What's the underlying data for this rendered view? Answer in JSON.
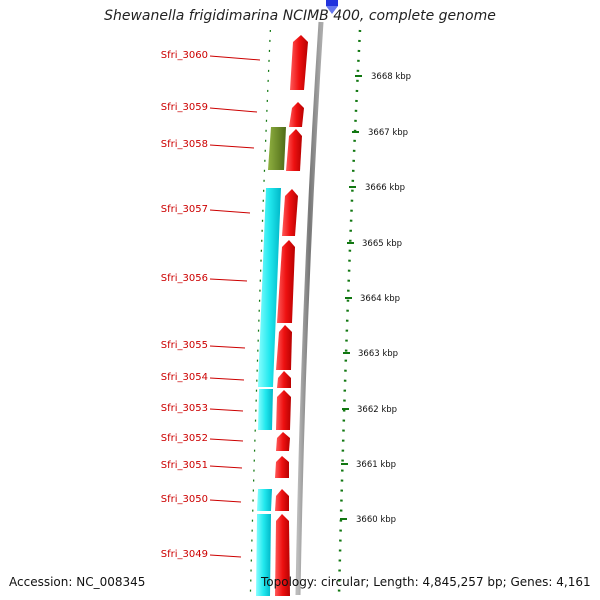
{
  "title": "Shewanella frigidimarina NCIMB 400, complete genome",
  "accession_text": "Accession: NC_008345",
  "topology_text": "Topology: circular; Length: 4,845,257 bp; Genes: 4,161",
  "colors": {
    "cds_forward": "#ee1111",
    "cds_blast_hit": "#22eeee",
    "cds_other": "#6b8e23",
    "gene_label": "#cc0000",
    "backbone": "#888888",
    "highlight": "#2233dd",
    "tick_marks": "#117711"
  },
  "gene_labels": [
    {
      "label": "Sfri_3060"
    },
    {
      "label": "Sfri_3059"
    },
    {
      "label": "Sfri_3058"
    },
    {
      "label": "Sfri_3057"
    },
    {
      "label": "Sfri_3056"
    },
    {
      "label": "Sfri_3055"
    },
    {
      "label": "Sfri_3054"
    },
    {
      "label": "Sfri_3053"
    },
    {
      "label": "Sfri_3052"
    },
    {
      "label": "Sfri_3051"
    },
    {
      "label": "Sfri_3050"
    },
    {
      "label": "Sfri_3049"
    }
  ],
  "scale_labels": [
    {
      "label": "3668 kbp"
    },
    {
      "label": "3667 kbp"
    },
    {
      "label": "3666 kbp"
    },
    {
      "label": "3665 kbp"
    },
    {
      "label": "3664 kbp"
    },
    {
      "label": "3663 kbp"
    },
    {
      "label": "3662 kbp"
    },
    {
      "label": "3661 kbp"
    },
    {
      "label": "3660 kbp"
    }
  ]
}
